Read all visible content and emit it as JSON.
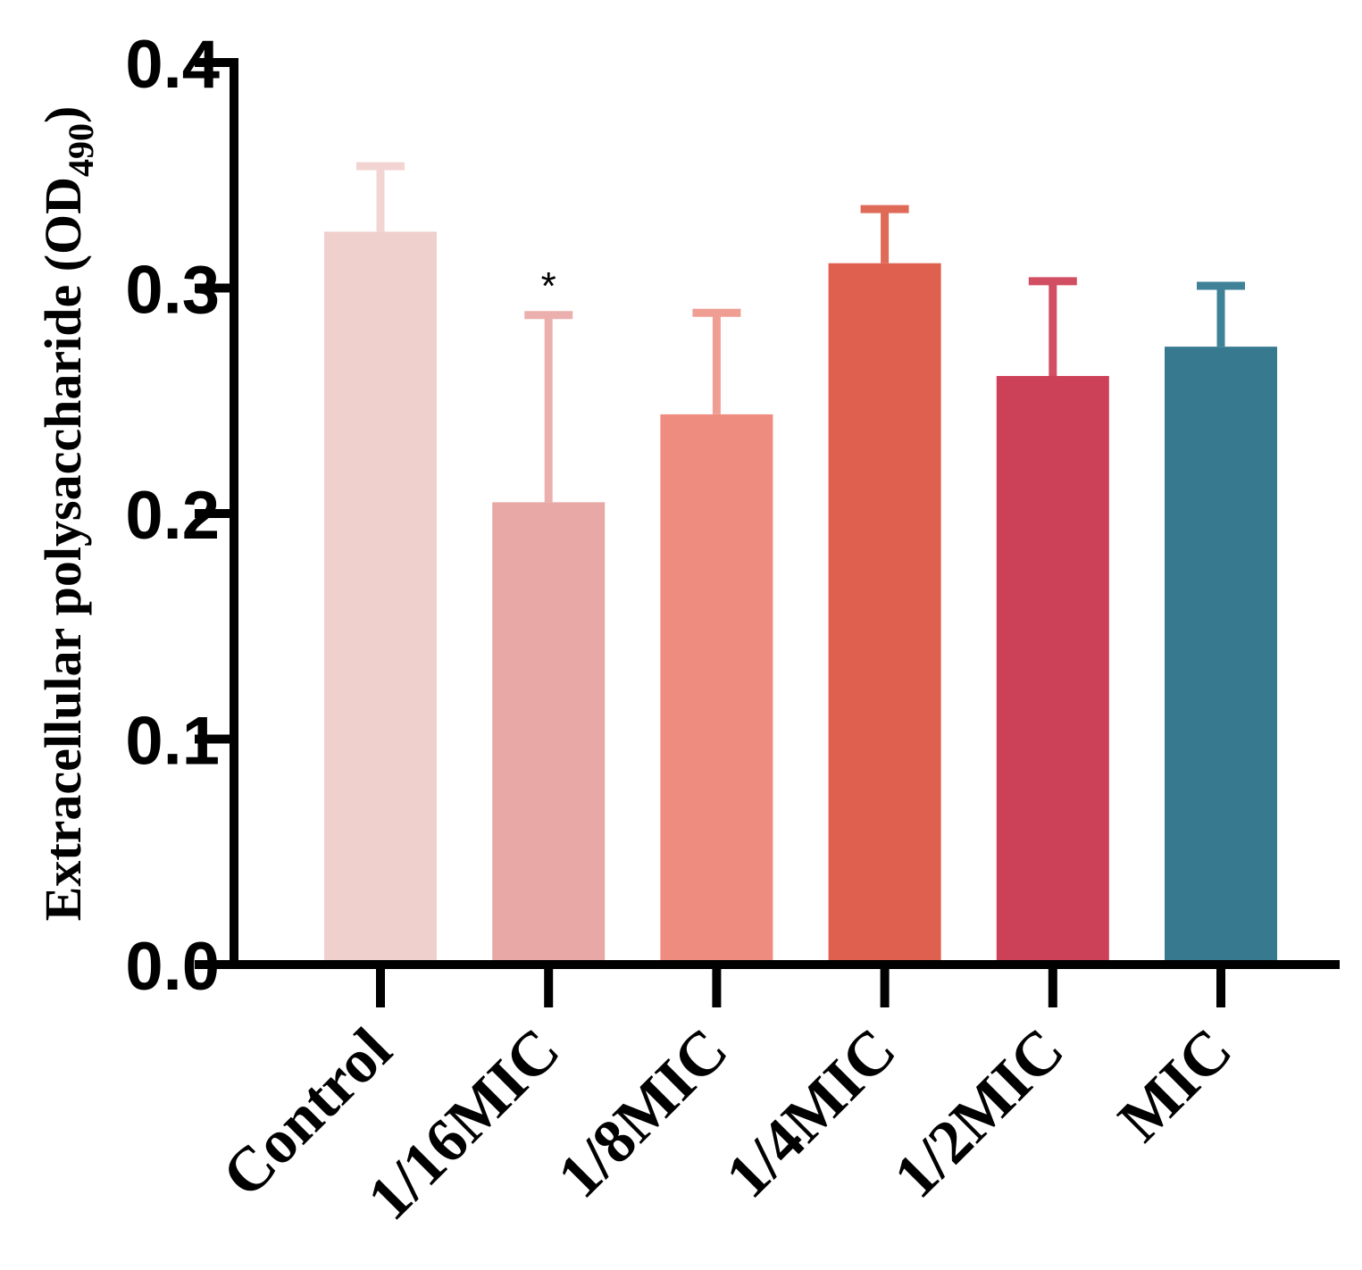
{
  "chart_data": {
    "type": "bar",
    "title": "",
    "xlabel": "",
    "ylabel": "Extracellular polysaccharide (OD",
    "ylabel_subscript": "490",
    "ylabel_suffix": ")",
    "ylim": [
      0,
      0.4
    ],
    "yticks": [
      0.0,
      0.1,
      0.2,
      0.3,
      0.4
    ],
    "ytick_labels": [
      "0.0",
      "0.1",
      "0.2",
      "0.3",
      "0.4"
    ],
    "categories": [
      "Control",
      "1/16MIC",
      "1/8MIC",
      "1/4MIC",
      "1/2MIC",
      "MIC"
    ],
    "values": [
      0.325,
      0.205,
      0.244,
      0.311,
      0.261,
      0.274
    ],
    "errors": [
      0.029,
      0.083,
      0.045,
      0.024,
      0.042,
      0.027
    ],
    "colors": [
      "#f0d0cd",
      "#e8a8a5",
      "#ef8c80",
      "#df604e",
      "#cc4058",
      "#377a90"
    ],
    "error_colors": [
      "#f2d5d2",
      "#ebb0ad",
      "#f09e93",
      "#e06a58",
      "#d24e62",
      "#3f8298"
    ],
    "annotations": [
      {
        "category": "1/16MIC",
        "text": "*"
      }
    ],
    "grid": false,
    "legend": "none"
  }
}
